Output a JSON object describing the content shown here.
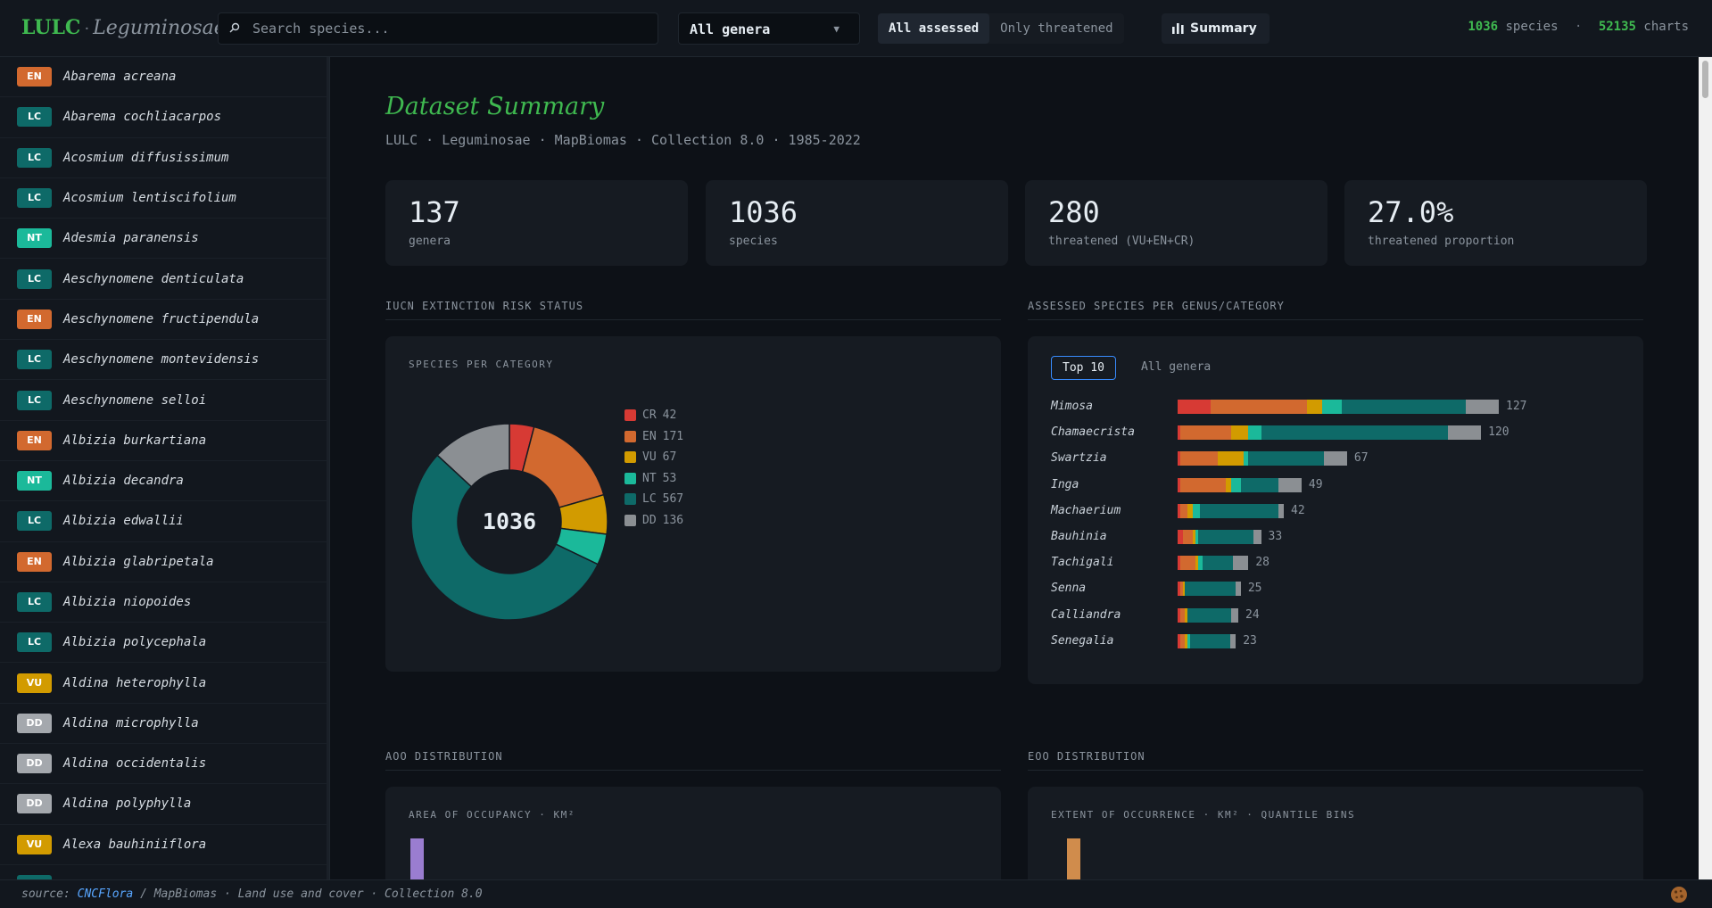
{
  "header": {
    "logo": "LULC",
    "logo_family": "Leguminosae",
    "search_placeholder": "Search species...",
    "genus_select": "All genera",
    "filters": [
      "All assessed",
      "Only threatened"
    ],
    "summary_label": "Summary",
    "species_count": "1036",
    "species_label": "species",
    "charts_count": "52135",
    "charts_label": "charts"
  },
  "colors": {
    "CR": "#d73a34",
    "EN": "#d2692f",
    "VU": "#d29b00",
    "NT": "#1bb99a",
    "LC": "#0e6a68",
    "DD": "#8b8f93",
    "accent": "#3fb950",
    "aoo": "#9a7dd0",
    "eoo": "#d08c4c"
  },
  "sidebar": {
    "species": [
      {
        "status": "EN",
        "name": "Abarema acreana"
      },
      {
        "status": "LC",
        "name": "Abarema cochliacarpos"
      },
      {
        "status": "LC",
        "name": "Acosmium diffusissimum"
      },
      {
        "status": "LC",
        "name": "Acosmium lentiscifolium"
      },
      {
        "status": "NT",
        "name": "Adesmia paranensis"
      },
      {
        "status": "LC",
        "name": "Aeschynomene denticulata"
      },
      {
        "status": "EN",
        "name": "Aeschynomene fructipendula"
      },
      {
        "status": "LC",
        "name": "Aeschynomene montevidensis"
      },
      {
        "status": "LC",
        "name": "Aeschynomene selloi"
      },
      {
        "status": "EN",
        "name": "Albizia burkartiana"
      },
      {
        "status": "NT",
        "name": "Albizia decandra"
      },
      {
        "status": "LC",
        "name": "Albizia edwallii"
      },
      {
        "status": "EN",
        "name": "Albizia glabripetala"
      },
      {
        "status": "LC",
        "name": "Albizia niopoides"
      },
      {
        "status": "LC",
        "name": "Albizia polycephala"
      },
      {
        "status": "VU",
        "name": "Aldina heterophylla"
      },
      {
        "status": "DD",
        "name": "Aldina microphylla"
      },
      {
        "status": "DD",
        "name": "Aldina occidentalis"
      },
      {
        "status": "DD",
        "name": "Aldina polyphylla"
      },
      {
        "status": "VU",
        "name": "Alexa bauhiniiflora"
      },
      {
        "status": "LC",
        "name": ""
      }
    ]
  },
  "main": {
    "title": "Dataset Summary",
    "subtitle": "LULC · Leguminosae · MapBiomas · Collection 8.0 · 1985-2022",
    "stats": [
      {
        "value": "137",
        "label": "genera"
      },
      {
        "value": "1036",
        "label": "species"
      },
      {
        "value": "280",
        "label": "threatened (VU+EN+CR)"
      },
      {
        "value": "27.0%",
        "label": "threatened proportion"
      }
    ],
    "sections": {
      "iucn": "IUCN EXTINCTION RISK STATUS",
      "genus": "ASSESSED SPECIES PER GENUS/CATEGORY",
      "aoo": "AOO DISTRIBUTION",
      "eoo": "EOO DISTRIBUTION"
    },
    "donut_caption": "SPECIES PER CATEGORY",
    "donut_total": "1036",
    "genus_tabs": [
      "Top 10",
      "All genera"
    ],
    "aoo_caption": "AREA OF OCCUPANCY · KM²",
    "eoo_caption": "EXTENT OF OCCURRENCE · KM² · QUANTILE BINS"
  },
  "chart_data": [
    {
      "type": "pie",
      "title": "SPECIES PER CATEGORY",
      "categories": [
        "CR",
        "EN",
        "VU",
        "NT",
        "LC",
        "DD"
      ],
      "values": [
        42,
        171,
        67,
        53,
        567,
        136
      ]
    },
    {
      "type": "bar",
      "orientation": "horizontal",
      "stacked": true,
      "categories": [
        "Mimosa",
        "Chamaecrista",
        "Swartzia",
        "Inga",
        "Machaerium",
        "Bauhinia",
        "Tachigali",
        "Senna",
        "Calliandra",
        "Senegalia"
      ],
      "totals": [
        127,
        120,
        67,
        49,
        42,
        33,
        28,
        25,
        24,
        23
      ],
      "series": [
        {
          "name": "CR",
          "values": [
            13,
            1,
            1,
            1,
            1,
            2,
            1,
            1,
            1,
            1
          ]
        },
        {
          "name": "EN",
          "values": [
            38,
            20,
            15,
            18,
            3,
            4,
            6,
            1,
            2,
            2
          ]
        },
        {
          "name": "VU",
          "values": [
            6,
            7,
            10,
            2,
            2,
            1,
            1,
            1,
            1,
            1
          ]
        },
        {
          "name": "NT",
          "values": [
            8,
            5,
            2,
            4,
            3,
            1,
            2,
            0,
            0,
            1
          ]
        },
        {
          "name": "LC",
          "values": [
            49,
            74,
            30,
            15,
            31,
            22,
            12,
            20,
            17,
            16
          ]
        },
        {
          "name": "DD",
          "values": [
            13,
            13,
            9,
            9,
            2,
            3,
            6,
            2,
            3,
            2
          ]
        }
      ]
    }
  ]
}
